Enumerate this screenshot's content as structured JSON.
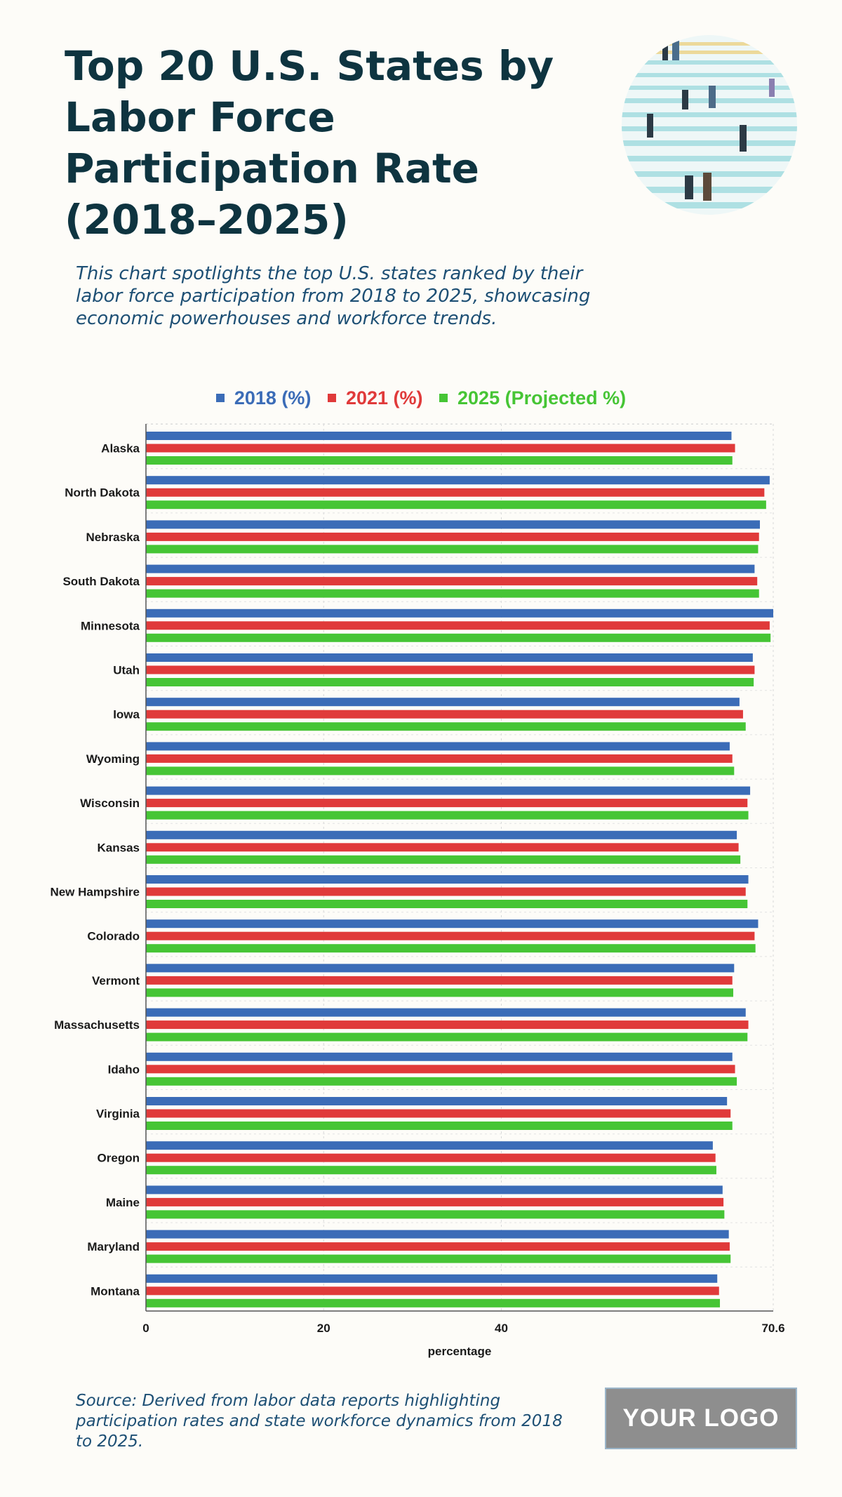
{
  "title": "Top 20 U.S. States by Labor Force Participation Rate (2018–2025)",
  "subtitle": "This chart spotlights the top U.S. states ranked by their labor force participation from 2018 to 2025, showcasing economic powerhouses and workforce trends.",
  "source": "Source: Derived from labor data reports highlighting participation rates and state workforce dynamics from 2018 to 2025.",
  "logo_text": "YOUR LOGO",
  "chart_data": {
    "type": "bar",
    "orientation": "horizontal",
    "categories": [
      "Alaska",
      "North Dakota",
      "Nebraska",
      "South Dakota",
      "Minnesota",
      "Utah",
      "Iowa",
      "Wyoming",
      "Wisconsin",
      "Kansas",
      "New Hampshire",
      "Colorado",
      "Vermont",
      "Massachusetts",
      "Idaho",
      "Virginia",
      "Oregon",
      "Maine",
      "Maryland",
      "Montana"
    ],
    "series": [
      {
        "name": "2018 (%)",
        "color": "#3b6cb7",
        "values": [
          65.9,
          70.2,
          69.1,
          68.5,
          70.6,
          68.3,
          66.8,
          65.7,
          68.0,
          66.5,
          67.8,
          68.9,
          66.2,
          67.5,
          66.0,
          65.4,
          63.8,
          64.9,
          65.6,
          64.3
        ]
      },
      {
        "name": "2021 (%)",
        "color": "#e03a3a",
        "values": [
          66.3,
          69.6,
          69.0,
          68.8,
          70.2,
          68.5,
          67.2,
          66.0,
          67.7,
          66.7,
          67.5,
          68.5,
          66.0,
          67.8,
          66.3,
          65.8,
          64.1,
          65.0,
          65.7,
          64.5
        ]
      },
      {
        "name": "2025 (Projected %)",
        "color": "#46c535",
        "values": [
          66.0,
          69.8,
          68.9,
          69.0,
          70.3,
          68.4,
          67.5,
          66.2,
          67.8,
          66.9,
          67.7,
          68.6,
          66.1,
          67.7,
          66.5,
          66.0,
          64.2,
          65.1,
          65.8,
          64.6
        ]
      }
    ],
    "xlabel": "percentage",
    "ylabel": "",
    "xlim": [
      0,
      70.6
    ],
    "ticks": [
      0,
      20,
      40,
      70.6
    ],
    "tick_labels": [
      "0",
      "20",
      "40",
      "70.6"
    ],
    "grid": true,
    "legend": "top-center"
  }
}
